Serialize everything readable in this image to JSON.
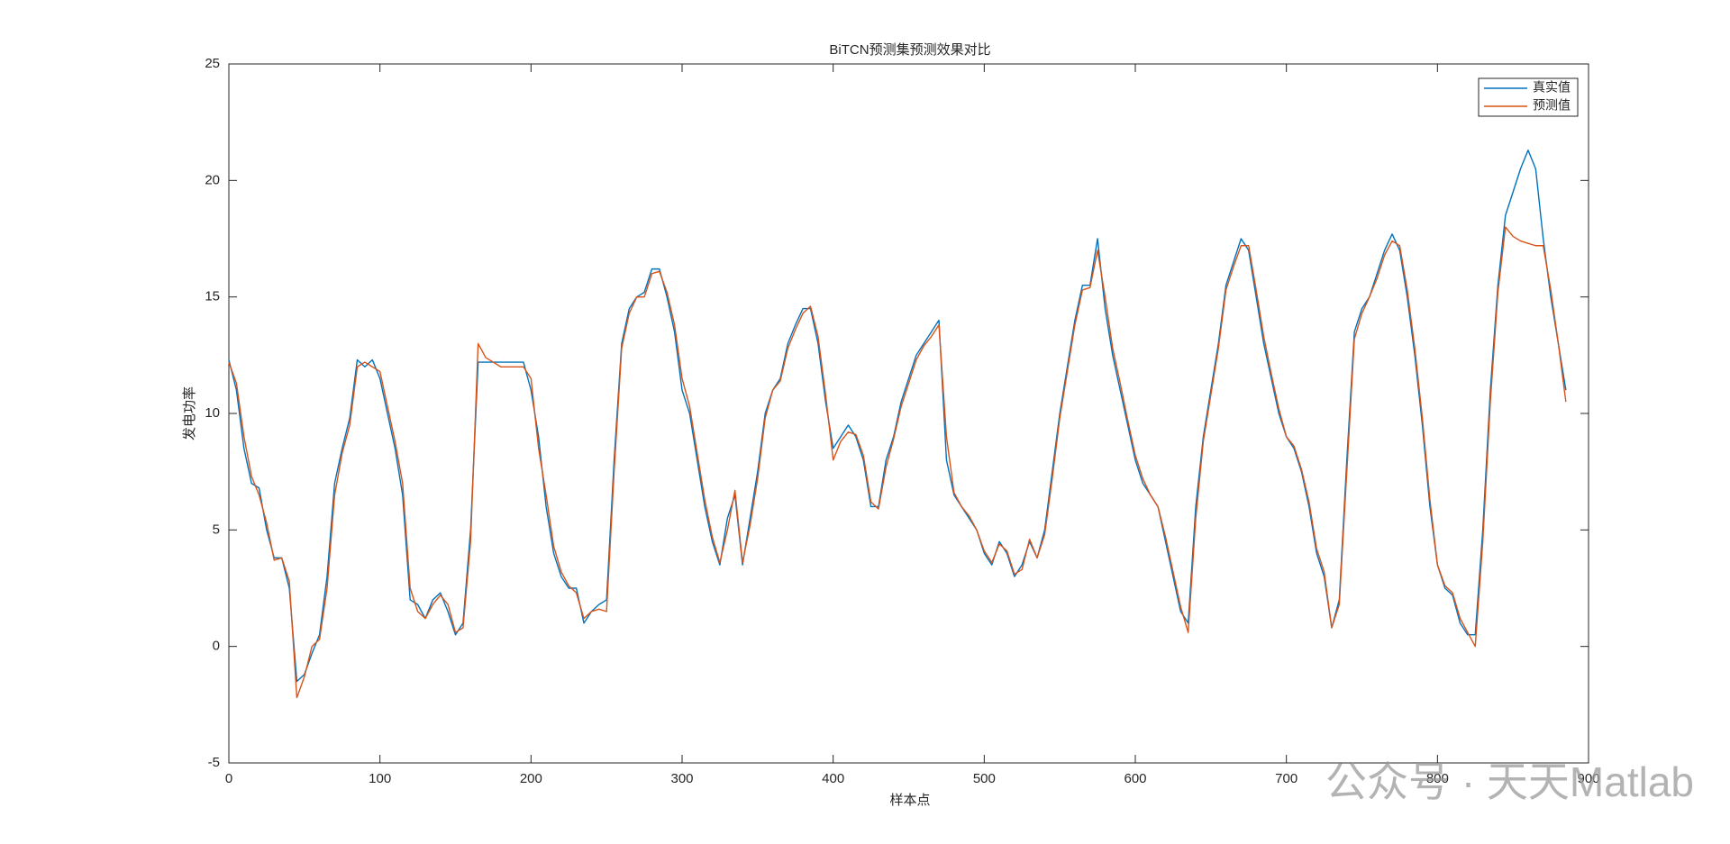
{
  "chart_data": {
    "type": "line",
    "title": "BiTCN预测集预测效果对比",
    "xlabel": "样本点",
    "ylabel": "发电功率",
    "watermark": "公众号 · 天天Matlab",
    "xlim": [
      0,
      900
    ],
    "xticks": [
      0,
      100,
      200,
      300,
      400,
      500,
      600,
      700,
      800,
      900
    ],
    "ylim": [
      -5,
      25
    ],
    "yticks": [
      -5,
      0,
      5,
      10,
      15,
      20,
      25
    ],
    "legend": "northeast",
    "x": [
      0,
      5,
      10,
      15,
      20,
      25,
      30,
      35,
      40,
      45,
      50,
      55,
      60,
      65,
      70,
      75,
      80,
      85,
      90,
      95,
      100,
      105,
      110,
      115,
      120,
      125,
      130,
      135,
      140,
      145,
      150,
      155,
      160,
      165,
      170,
      175,
      180,
      185,
      190,
      195,
      200,
      205,
      210,
      215,
      220,
      225,
      230,
      235,
      240,
      245,
      250,
      255,
      260,
      265,
      270,
      275,
      280,
      285,
      290,
      295,
      300,
      305,
      310,
      315,
      320,
      325,
      330,
      335,
      340,
      345,
      350,
      355,
      360,
      365,
      370,
      375,
      380,
      385,
      390,
      395,
      400,
      405,
      410,
      415,
      420,
      425,
      430,
      435,
      440,
      445,
      450,
      455,
      460,
      465,
      470,
      475,
      480,
      485,
      490,
      495,
      500,
      505,
      510,
      515,
      520,
      525,
      530,
      535,
      540,
      545,
      550,
      555,
      560,
      565,
      570,
      575,
      580,
      585,
      590,
      595,
      600,
      605,
      610,
      615,
      620,
      625,
      630,
      635,
      640,
      645,
      650,
      655,
      660,
      665,
      670,
      675,
      680,
      685,
      690,
      695,
      700,
      705,
      710,
      715,
      720,
      725,
      730,
      735,
      740,
      745,
      750,
      755,
      760,
      765,
      770,
      775,
      780,
      785,
      790,
      795,
      800,
      805,
      810,
      815,
      820,
      825,
      830,
      835,
      840,
      845,
      850,
      855,
      860,
      865,
      870,
      875,
      880,
      885
    ],
    "series": [
      {
        "name": "真实值",
        "color": "#0072bd",
        "values": [
          12.3,
          11,
          8.5,
          7,
          6.8,
          5,
          3.8,
          3.8,
          2.5,
          -1.5,
          -1.2,
          -0.3,
          0.5,
          3,
          7,
          8.5,
          9.8,
          12.3,
          12,
          12.3,
          11.5,
          10,
          8.5,
          6.5,
          2,
          1.8,
          1.2,
          2,
          2.3,
          1.5,
          0.5,
          1,
          5,
          12.2,
          12.2,
          12.2,
          12.2,
          12.2,
          12.2,
          12.2,
          11,
          9,
          6,
          4,
          3,
          2.5,
          2.5,
          1,
          1.5,
          1.8,
          2,
          8,
          13,
          14.5,
          15,
          15.2,
          16.2,
          16.2,
          15,
          13.5,
          11,
          10,
          8,
          6,
          4.5,
          3.5,
          5.5,
          6.5,
          3.5,
          5.5,
          7.5,
          10,
          11,
          11.5,
          13,
          13.8,
          14.5,
          14.5,
          13,
          10.5,
          8.5,
          9,
          9.5,
          9,
          8,
          6,
          6,
          8,
          9,
          10.5,
          11.5,
          12.5,
          13,
          13.5,
          14,
          8,
          6.5,
          6,
          5.5,
          5,
          4,
          3.5,
          4.5,
          4,
          3,
          3.5,
          4.5,
          3.8,
          5,
          7.5,
          10,
          12,
          14,
          15.5,
          15.5,
          17.5,
          14.5,
          12.5,
          11,
          9.5,
          8,
          7,
          6.5,
          6,
          4.5,
          3,
          1.5,
          1,
          6,
          9,
          11,
          13,
          15.5,
          16.5,
          17.5,
          17,
          15,
          13,
          11.5,
          10,
          9,
          8.5,
          7.5,
          6,
          4,
          3,
          0.8,
          2,
          8,
          13.5,
          14.5,
          15,
          16,
          17,
          17.7,
          17,
          15,
          12.5,
          9.5,
          6,
          3.5,
          2.5,
          2.2,
          1,
          0.5,
          0.5,
          5,
          11,
          15.5,
          18.5,
          19.5,
          20.5,
          21.3,
          20.5,
          17.5,
          15,
          13,
          11
        ]
      },
      {
        "name": "预测值",
        "color": "#d95319",
        "values": [
          12.2,
          11.3,
          9,
          7.3,
          6.5,
          5.3,
          3.7,
          3.8,
          2.8,
          -2.2,
          -1.3,
          0,
          0.3,
          2.5,
          6.5,
          8.3,
          9.5,
          12,
          12.2,
          12,
          11.8,
          10.3,
          8.8,
          7,
          2.5,
          1.5,
          1.2,
          1.8,
          2.2,
          1.8,
          0.6,
          0.8,
          4.5,
          13,
          12.4,
          12.2,
          12,
          12,
          12,
          12,
          11.5,
          8.5,
          6.5,
          4.3,
          3.2,
          2.6,
          2.3,
          1.2,
          1.5,
          1.6,
          1.5,
          7.5,
          12.8,
          14.3,
          15,
          15,
          16,
          16.1,
          15.2,
          13.8,
          11.5,
          10.3,
          8.3,
          6.3,
          4.7,
          3.6,
          5,
          6.7,
          3.6,
          5.2,
          7.2,
          9.8,
          11,
          11.4,
          12.8,
          13.6,
          14.3,
          14.6,
          13.3,
          10.8,
          8,
          8.8,
          9.2,
          9.1,
          8.2,
          6.2,
          5.9,
          7.7,
          8.9,
          10.3,
          11.3,
          12.3,
          12.9,
          13.3,
          13.8,
          9,
          6.6,
          6,
          5.6,
          5,
          4.1,
          3.6,
          4.4,
          4.1,
          3.1,
          3.3,
          4.6,
          3.8,
          4.8,
          7.2,
          9.8,
          11.8,
          13.8,
          15.3,
          15.4,
          17,
          15,
          12.8,
          11.3,
          9.7,
          8.2,
          7.2,
          6.5,
          6,
          4.7,
          3.2,
          1.7,
          0.6,
          5.5,
          8.8,
          10.8,
          12.8,
          15.3,
          16.3,
          17.2,
          17.2,
          15.3,
          13.3,
          11.7,
          10.2,
          9,
          8.6,
          7.6,
          6.2,
          4.2,
          3.2,
          0.8,
          1.8,
          7.5,
          13.2,
          14.3,
          15,
          15.8,
          16.8,
          17.4,
          17.2,
          15.3,
          12.8,
          9.8,
          6.3,
          3.5,
          2.6,
          2.3,
          1.2,
          0.6,
          0,
          4.5,
          10.5,
          15.2,
          18,
          17.6,
          17.4,
          17.3,
          17.2,
          17.2,
          15.3,
          13,
          10.5
        ]
      }
    ]
  }
}
